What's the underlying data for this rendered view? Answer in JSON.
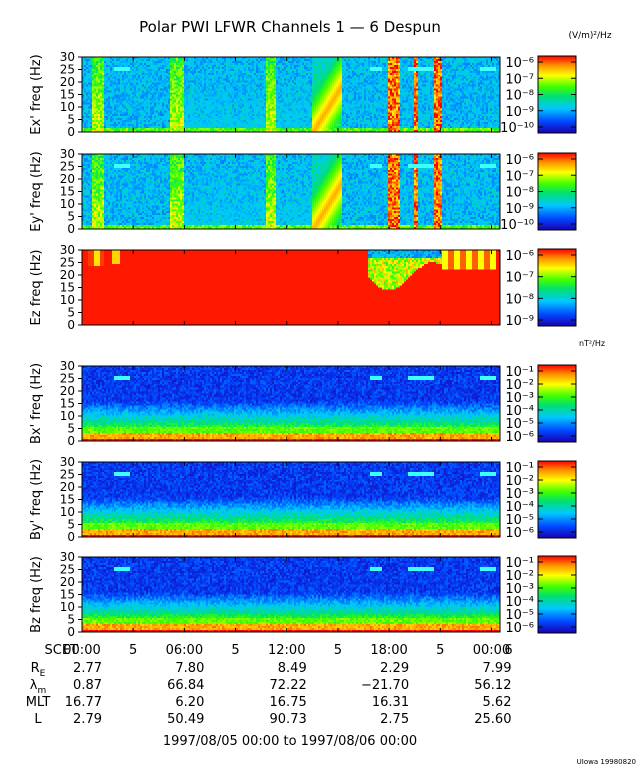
{
  "title": "Polar PWI LFWR Channels 1 — 6 Despun",
  "credit": "UIowa 19980820",
  "date_range": "1997/08/05 00:00 to 1997/08/06 00:00",
  "colorbar_units": [
    "(V/m)²/Hz",
    "nT²/Hz"
  ],
  "chart_data": [
    {
      "type": "heatmap",
      "ylabel": "Ex' freq (Hz)",
      "ylim": [
        0,
        30
      ],
      "yticks": [
        "0",
        "5",
        "10",
        "15",
        "20",
        "25",
        "30"
      ],
      "colorbar": {
        "unit_index": 0,
        "labels": [
          "10⁻⁶",
          "10⁻⁷",
          "10⁻⁸",
          "10⁻⁹",
          "10⁻¹⁰"
        ]
      }
    },
    {
      "type": "heatmap",
      "ylabel": "Ey' freq (Hz)",
      "ylim": [
        0,
        30
      ],
      "yticks": [
        "0",
        "5",
        "10",
        "15",
        "20",
        "25",
        "30"
      ],
      "colorbar": {
        "unit_index": 0,
        "labels": [
          "10⁻⁶",
          "10⁻⁷",
          "10⁻⁸",
          "10⁻⁹",
          "10⁻¹⁰"
        ]
      }
    },
    {
      "type": "heatmap",
      "ylabel": "Ez freq (Hz)",
      "ylim": [
        0,
        30
      ],
      "yticks": [
        "0",
        "5",
        "10",
        "15",
        "20",
        "25",
        "30"
      ],
      "colorbar": {
        "unit_index": 0,
        "labels": [
          "10⁻⁶",
          "10⁻⁷",
          "10⁻⁸",
          "10⁻⁹"
        ]
      }
    },
    {
      "type": "heatmap",
      "ylabel": "Bx' freq (Hz)",
      "ylim": [
        0,
        30
      ],
      "yticks": [
        "0",
        "5",
        "10",
        "15",
        "20",
        "25",
        "30"
      ],
      "colorbar": {
        "unit_index": 1,
        "labels": [
          "10⁻¹",
          "10⁻²",
          "10⁻³",
          "10⁻⁴",
          "10⁻⁵",
          "10⁻⁶"
        ]
      }
    },
    {
      "type": "heatmap",
      "ylabel": "By' freq (Hz)",
      "ylim": [
        0,
        30
      ],
      "yticks": [
        "0",
        "5",
        "10",
        "15",
        "20",
        "25",
        "30"
      ],
      "colorbar": {
        "unit_index": 1,
        "labels": [
          "10⁻¹",
          "10⁻²",
          "10⁻³",
          "10⁻⁴",
          "10⁻⁵",
          "10⁻⁶"
        ]
      }
    },
    {
      "type": "heatmap",
      "ylabel": "Bz freq (Hz)",
      "ylim": [
        0,
        30
      ],
      "yticks": [
        "0",
        "5",
        "10",
        "15",
        "20",
        "25",
        "30"
      ],
      "colorbar": {
        "unit_index": 1,
        "labels": [
          "10⁻¹",
          "10⁻²",
          "10⁻³",
          "10⁻⁴",
          "10⁻⁵",
          "10⁻⁶"
        ]
      }
    }
  ],
  "xaxis": {
    "row_label": "SCET",
    "ticks": [
      {
        "hour": 0,
        "label": "00:00"
      },
      {
        "hour": 3,
        "label": "5"
      },
      {
        "hour": 6,
        "label": "06:00"
      },
      {
        "hour": 9,
        "label": "5"
      },
      {
        "hour": 12,
        "label": "12:00"
      },
      {
        "hour": 15,
        "label": "5"
      },
      {
        "hour": 18,
        "label": "18:00"
      },
      {
        "hour": 21,
        "label": "5"
      },
      {
        "hour": 24,
        "label": "00:00"
      },
      {
        "hour": 25,
        "label": "6"
      }
    ]
  },
  "ephemeris": {
    "rows": [
      {
        "label": "R_E",
        "values": [
          "2.77",
          "7.80",
          "8.49",
          "2.29",
          "7.99"
        ]
      },
      {
        "label": "λ_m",
        "values": [
          "0.87",
          "66.84",
          "72.22",
          "−21.70",
          "56.12"
        ]
      },
      {
        "label": "MLT",
        "values": [
          "16.77",
          "6.20",
          "16.75",
          "16.31",
          "5.62"
        ]
      },
      {
        "label": "L",
        "values": [
          "2.79",
          "50.49",
          "90.73",
          "2.75",
          "25.60"
        ]
      }
    ]
  }
}
